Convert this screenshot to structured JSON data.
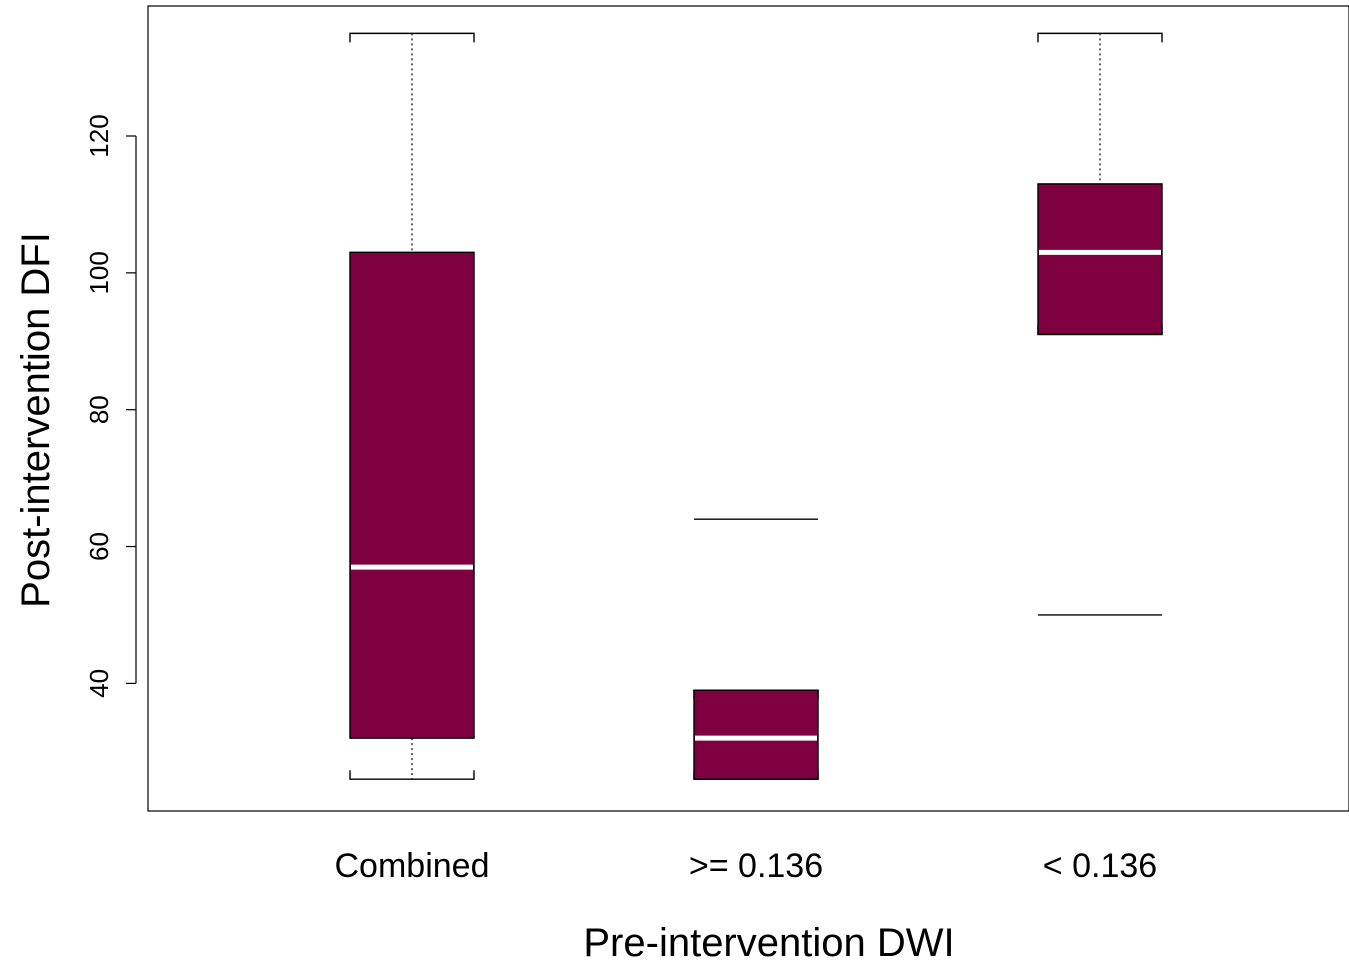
{
  "chart_data": {
    "type": "box",
    "xlabel": "Pre-intervention DWI",
    "ylabel": "Post-intervention DFI",
    "categories": [
      "Combined",
      ">= 0.136",
      "< 0.136"
    ],
    "yticks": [
      40,
      60,
      80,
      100,
      120
    ],
    "ylim": [
      22.5,
      140
    ],
    "grid": false,
    "box_color": "#7f0040",
    "median_color": "#ffffff",
    "boxes": [
      {
        "category": "Combined",
        "whisker_low": 26,
        "q1": 32,
        "median": 57,
        "q3": 103,
        "whisker_high": 135,
        "outliers": []
      },
      {
        "category": ">= 0.136",
        "whisker_low": 26,
        "q1": 26,
        "median": 32,
        "q3": 39,
        "whisker_high": 39,
        "outliers": [
          64
        ]
      },
      {
        "category": "< 0.136",
        "whisker_low": 91,
        "q1": 91,
        "median": 103,
        "q3": 113,
        "whisker_high": 135,
        "outliers": [
          50
        ]
      }
    ]
  }
}
